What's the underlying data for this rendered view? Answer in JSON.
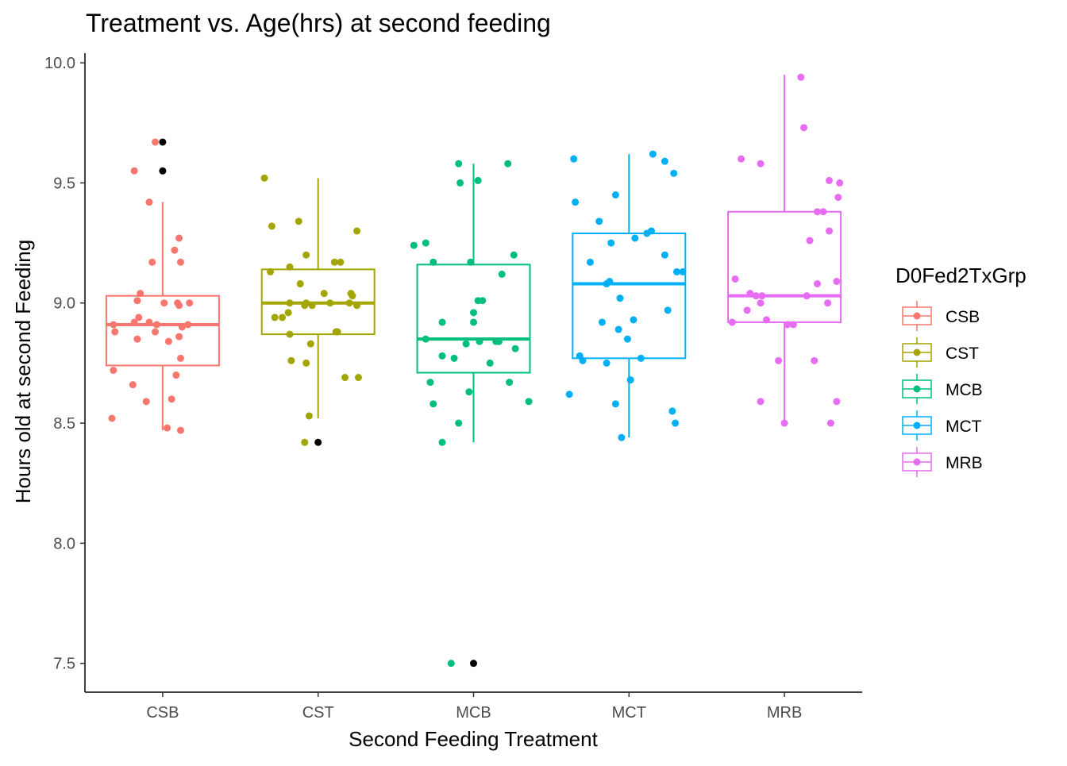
{
  "chart_data": {
    "type": "boxplot",
    "title": "Treatment vs. Age(hrs) at second feeding",
    "xlabel": "Second Feeding Treatment",
    "ylabel": "Hours old at second Feeding",
    "ylim": [
      7.38,
      10.04
    ],
    "yticks": [
      "7.5",
      "8.0",
      "8.5",
      "9.0",
      "9.5",
      "10.0"
    ],
    "categories": [
      "CSB",
      "CST",
      "MCB",
      "MCT",
      "MRB"
    ],
    "grid": false,
    "legend": {
      "title": "D0Fed2TxGrp",
      "position": "right"
    },
    "outlier_color": "#000000",
    "series": [
      {
        "name": "CSB",
        "color": "#F8766D",
        "box": {
          "q1": 8.74,
          "median": 8.91,
          "q3": 9.03,
          "whisker_low": 8.47,
          "whisker_high": 9.42
        },
        "outliers": [
          9.67,
          9.55
        ],
        "points": [
          [
            -0.19,
            9.55
          ],
          [
            -0.05,
            9.67
          ],
          [
            -0.09,
            9.42
          ],
          [
            0.11,
            9.27
          ],
          [
            0.08,
            9.22
          ],
          [
            -0.07,
            9.17
          ],
          [
            0.12,
            9.17
          ],
          [
            -0.15,
            9.04
          ],
          [
            -0.17,
            9.01
          ],
          [
            0.01,
            9.0
          ],
          [
            0.1,
            9.0
          ],
          [
            0.18,
            9.0
          ],
          [
            0.11,
            8.99
          ],
          [
            -0.16,
            8.94
          ],
          [
            -0.09,
            8.92
          ],
          [
            -0.19,
            8.92
          ],
          [
            -0.04,
            8.91
          ],
          [
            0.13,
            8.9
          ],
          [
            0.17,
            8.91
          ],
          [
            -0.33,
            8.91
          ],
          [
            -0.32,
            8.88
          ],
          [
            -0.17,
            8.85
          ],
          [
            -0.05,
            8.88
          ],
          [
            0.04,
            8.84
          ],
          [
            0.11,
            8.86
          ],
          [
            0.12,
            8.77
          ],
          [
            -0.33,
            8.72
          ],
          [
            0.09,
            8.7
          ],
          [
            -0.2,
            8.66
          ],
          [
            -0.11,
            8.59
          ],
          [
            0.06,
            8.6
          ],
          [
            -0.34,
            8.52
          ],
          [
            0.03,
            8.48
          ],
          [
            0.12,
            8.47
          ]
        ]
      },
      {
        "name": "CST",
        "color": "#A3A500",
        "box": {
          "q1": 8.87,
          "median": 9.0,
          "q3": 9.14,
          "whisker_low": 8.52,
          "whisker_high": 9.52
        },
        "outliers": [
          8.42
        ],
        "points": [
          [
            -0.36,
            9.52
          ],
          [
            -0.31,
            9.32
          ],
          [
            -0.13,
            9.34
          ],
          [
            -0.08,
            9.2
          ],
          [
            0.11,
            9.17
          ],
          [
            0.15,
            9.17
          ],
          [
            -0.32,
            9.13
          ],
          [
            -0.19,
            9.15
          ],
          [
            -0.12,
            9.08
          ],
          [
            0.04,
            9.04
          ],
          [
            0.22,
            9.04
          ],
          [
            0.23,
            9.03
          ],
          [
            -0.19,
            9.0
          ],
          [
            -0.09,
            8.99
          ],
          [
            -0.08,
            9.0
          ],
          [
            -0.04,
            8.99
          ],
          [
            0.08,
            9.0
          ],
          [
            0.21,
            9.0
          ],
          [
            0.26,
            8.99
          ],
          [
            -0.2,
            8.96
          ],
          [
            -0.24,
            8.94
          ],
          [
            -0.29,
            8.94
          ],
          [
            -0.19,
            8.87
          ],
          [
            0.12,
            8.88
          ],
          [
            0.13,
            8.88
          ],
          [
            -0.05,
            8.83
          ],
          [
            -0.18,
            8.76
          ],
          [
            -0.08,
            8.75
          ],
          [
            0.18,
            8.69
          ],
          [
            0.27,
            8.69
          ],
          [
            -0.06,
            8.53
          ],
          [
            -0.09,
            8.42
          ],
          [
            0.26,
            9.3
          ]
        ]
      },
      {
        "name": "MCB",
        "color": "#00BF7D",
        "box": {
          "q1": 8.71,
          "median": 8.85,
          "q3": 9.16,
          "whisker_low": 8.42,
          "whisker_high": 9.58
        },
        "outliers": [
          7.5
        ],
        "points": [
          [
            -0.1,
            9.58
          ],
          [
            0.23,
            9.58
          ],
          [
            -0.09,
            9.5
          ],
          [
            0.03,
            9.51
          ],
          [
            -0.4,
            9.24
          ],
          [
            -0.32,
            9.25
          ],
          [
            0.27,
            9.2
          ],
          [
            -0.27,
            9.17
          ],
          [
            -0.02,
            9.17
          ],
          [
            0.19,
            9.12
          ],
          [
            0.03,
            9.01
          ],
          [
            0.06,
            9.01
          ],
          [
            -0.21,
            8.92
          ],
          [
            0.0,
            8.92
          ],
          [
            -0.32,
            8.85
          ],
          [
            -0.05,
            8.83
          ],
          [
            0.04,
            8.84
          ],
          [
            0.17,
            8.84
          ],
          [
            0.15,
            8.84
          ],
          [
            0.28,
            8.81
          ],
          [
            -0.21,
            8.78
          ],
          [
            -0.13,
            8.77
          ],
          [
            0.11,
            8.75
          ],
          [
            -0.29,
            8.67
          ],
          [
            0.24,
            8.67
          ],
          [
            -0.27,
            8.58
          ],
          [
            -0.03,
            8.63
          ],
          [
            0.37,
            8.59
          ],
          [
            -0.1,
            8.5
          ],
          [
            -0.21,
            8.42
          ],
          [
            -0.15,
            7.5
          ],
          [
            0.0,
            8.96
          ]
        ]
      },
      {
        "name": "MCT",
        "color": "#00B0F6",
        "box": {
          "q1": 8.77,
          "median": 9.08,
          "q3": 9.29,
          "whisker_low": 8.44,
          "whisker_high": 9.62
        },
        "outliers": [],
        "points": [
          [
            -0.37,
            9.6
          ],
          [
            0.16,
            9.62
          ],
          [
            0.24,
            9.59
          ],
          [
            0.3,
            9.54
          ],
          [
            -0.09,
            9.45
          ],
          [
            -0.36,
            9.42
          ],
          [
            -0.2,
            9.34
          ],
          [
            0.15,
            9.3
          ],
          [
            0.12,
            9.29
          ],
          [
            0.04,
            9.27
          ],
          [
            -0.12,
            9.25
          ],
          [
            -0.26,
            9.17
          ],
          [
            0.24,
            9.2
          ],
          [
            0.32,
            9.13
          ],
          [
            -0.13,
            9.09
          ],
          [
            0.36,
            9.13
          ],
          [
            -0.15,
            9.08
          ],
          [
            -0.06,
            9.02
          ],
          [
            0.26,
            8.97
          ],
          [
            -0.18,
            8.92
          ],
          [
            -0.07,
            8.89
          ],
          [
            -0.01,
            8.85
          ],
          [
            0.03,
            8.93
          ],
          [
            -0.33,
            8.78
          ],
          [
            -0.31,
            8.76
          ],
          [
            -0.15,
            8.75
          ],
          [
            0.08,
            8.77
          ],
          [
            -0.4,
            8.62
          ],
          [
            0.01,
            8.68
          ],
          [
            -0.09,
            8.58
          ],
          [
            0.29,
            8.55
          ],
          [
            0.31,
            8.5
          ],
          [
            -0.05,
            8.44
          ]
        ]
      },
      {
        "name": "MRB",
        "color": "#E76BF3",
        "box": {
          "q1": 8.92,
          "median": 9.03,
          "q3": 9.38,
          "whisker_low": 8.5,
          "whisker_high": 9.95
        },
        "outliers": [],
        "points": [
          [
            0.11,
            9.94
          ],
          [
            0.13,
            9.73
          ],
          [
            -0.29,
            9.6
          ],
          [
            -0.16,
            9.58
          ],
          [
            0.3,
            9.51
          ],
          [
            0.37,
            9.5
          ],
          [
            0.36,
            9.44
          ],
          [
            0.26,
            9.38
          ],
          [
            0.22,
            9.38
          ],
          [
            0.3,
            9.3
          ],
          [
            0.17,
            9.26
          ],
          [
            -0.33,
            9.1
          ],
          [
            0.35,
            9.09
          ],
          [
            0.22,
            9.08
          ],
          [
            -0.23,
            9.04
          ],
          [
            -0.19,
            9.03
          ],
          [
            -0.15,
            9.03
          ],
          [
            -0.16,
            9.0
          ],
          [
            0.29,
            9.0
          ],
          [
            0.15,
            9.03
          ],
          [
            -0.25,
            8.97
          ],
          [
            -0.12,
            8.93
          ],
          [
            -0.35,
            8.92
          ],
          [
            0.02,
            8.91
          ],
          [
            0.06,
            8.91
          ],
          [
            -0.04,
            8.76
          ],
          [
            0.2,
            8.76
          ],
          [
            -0.16,
            8.59
          ],
          [
            0.35,
            8.59
          ],
          [
            0.0,
            8.5
          ],
          [
            0.31,
            8.5
          ]
        ]
      }
    ]
  }
}
